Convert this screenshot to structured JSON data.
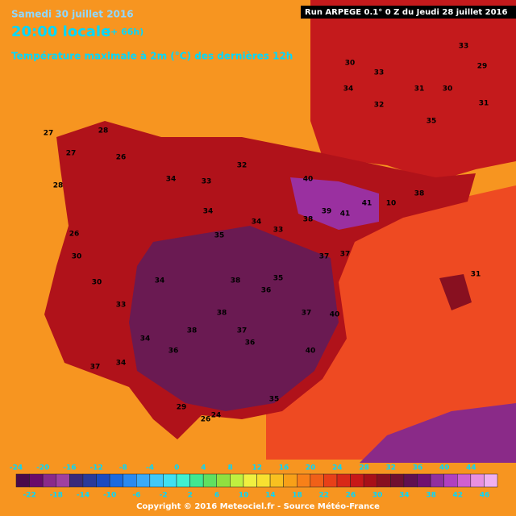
{
  "header": {
    "date": "Samedi 30 juillet 2016",
    "time": "20:00 locale",
    "lead": "(+ 66h)",
    "subtitle": "Température maximale à 2m (°C) des dernières 12h",
    "run": "Run ARPEGE 0.1° 0 Z du Jeudi 28 juillet 2016"
  },
  "map": {
    "temperature_labels": [
      30,
      33,
      31,
      34,
      29,
      33,
      30,
      32,
      35,
      31,
      28,
      26,
      27,
      34,
      33,
      32,
      34,
      40,
      39,
      41,
      41,
      10,
      38,
      33,
      35,
      34,
      38,
      37,
      38,
      34,
      37,
      36,
      37,
      35,
      38,
      40,
      38,
      37,
      36,
      34,
      33,
      30,
      30,
      26,
      28,
      27,
      31,
      37,
      34,
      40,
      29,
      26,
      24,
      35,
      36
    ]
  },
  "legend": {
    "top_labels": [
      -24,
      -20,
      -16,
      -12,
      -8,
      -4,
      0,
      4,
      8,
      12,
      16,
      20,
      24,
      28,
      32,
      36,
      40,
      44
    ],
    "bottom_labels": [
      -22,
      -18,
      -14,
      -10,
      -6,
      -2,
      2,
      6,
      10,
      14,
      18,
      22,
      26,
      30,
      34,
      38,
      42,
      46
    ],
    "colors": [
      "#4a0a4a",
      "#6a0a6a",
      "#8a2a8a",
      "#a040a0",
      "#3a2a7a",
      "#2a3a9a",
      "#1a4ac0",
      "#1a6ae0",
      "#2a8af0",
      "#3aaaf8",
      "#40c8f8",
      "#40e0f0",
      "#40f0d0",
      "#40e890",
      "#60e060",
      "#90e040",
      "#c0f040",
      "#f0f040",
      "#f8e030",
      "#f8c020",
      "#f8a018",
      "#f88018",
      "#f06018",
      "#e84018",
      "#d82818",
      "#c81818",
      "#a81018",
      "#881020",
      "#701030",
      "#601050",
      "#701070",
      "#9030a0",
      "#b040c0",
      "#d060d0",
      "#e890e0",
      "#f0b0f0"
    ]
  },
  "footer": {
    "copyright": "Copyright © 2016 Meteociel.fr - Source Météo-France"
  }
}
